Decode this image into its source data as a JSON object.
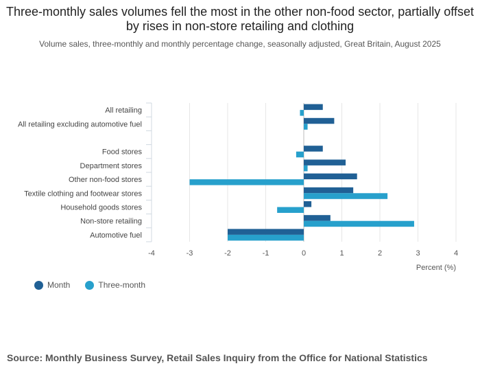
{
  "title": "Three-monthly sales volumes fell the most in the other non-food sector, partially offset by rises in non-store retailing and clothing",
  "subtitle": "Volume sales, three-monthly and monthly percentage change, seasonally adjusted, Great Britain, August 2025",
  "source": "Source: Monthly Business Survey, Retail Sales Inquiry from the Office for National Statistics",
  "colors": {
    "month": "#206095",
    "three_month": "#27a0cc"
  },
  "chart_data": {
    "type": "bar",
    "orientation": "horizontal",
    "categories": [
      "All retailing",
      "All retailing excluding automotive fuel",
      "",
      "Food stores",
      "Department stores",
      "Other non-food stores",
      "Textile clothing and footwear stores",
      "Household goods stores",
      "Non-store retailing",
      "Automotive fuel"
    ],
    "series": [
      {
        "name": "Month",
        "values": [
          0.5,
          0.8,
          null,
          0.5,
          1.1,
          1.4,
          1.3,
          0.2,
          0.7,
          -2.0
        ]
      },
      {
        "name": "Three-month",
        "values": [
          -0.1,
          0.1,
          null,
          -0.2,
          0.1,
          -3.0,
          2.2,
          -0.7,
          2.9,
          -2.0
        ]
      }
    ],
    "xlabel": "Percent (%)",
    "xlim": [
      -4,
      4
    ],
    "xticks": [
      -4,
      -3,
      -2,
      -1,
      0,
      1,
      2,
      3,
      4
    ],
    "grid": true,
    "legend": "bottom-left"
  }
}
